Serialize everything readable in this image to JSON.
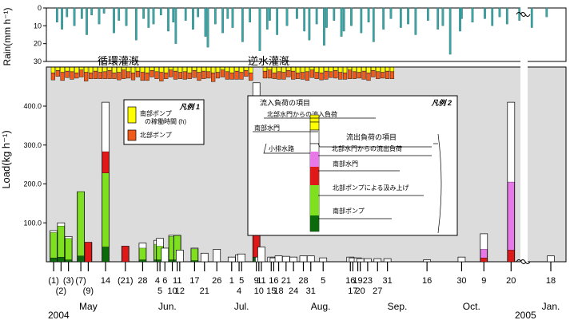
{
  "chart_data": [
    {
      "type": "bar",
      "title": "",
      "ylabel": "Rain(mm h⁻¹)",
      "y_inverted": true,
      "ylim": [
        0,
        30
      ],
      "yticks": [
        0,
        10,
        20,
        30
      ],
      "x_domain_days": [
        0,
        305
      ],
      "series": [
        {
          "name": "",
          "color": "#3aa6a6",
          "x": [
            2,
            4,
            6,
            9,
            12,
            14,
            16,
            19,
            21,
            25,
            27,
            30,
            34,
            37,
            39,
            41,
            44,
            47,
            49,
            50,
            54,
            57,
            59,
            62,
            63,
            66,
            69,
            71,
            73,
            77,
            80,
            84,
            87,
            88,
            91,
            95,
            99,
            102,
            104,
            107,
            110,
            111,
            114,
            117,
            118,
            121,
            125,
            128,
            130,
            134,
            137,
            141,
            144,
            147,
            152,
            156,
            158,
            161,
            165,
            170,
            175,
            178,
            181,
            184,
            189,
            194,
            200,
            206
          ],
          "values": [
            8,
            12,
            5,
            10,
            6,
            15,
            4,
            9,
            3,
            14,
            7,
            10,
            18,
            6,
            11,
            9,
            4,
            13,
            8,
            20,
            7,
            12,
            5,
            16,
            22,
            9,
            14,
            6,
            11,
            19,
            8,
            24,
            12,
            7,
            15,
            10,
            6,
            13,
            18,
            9,
            21,
            11,
            7,
            16,
            13,
            10,
            14,
            8,
            19,
            12,
            6,
            11,
            9,
            15,
            7,
            12,
            10,
            26,
            13,
            8,
            6,
            10,
            5,
            9,
            7,
            11,
            5,
            6
          ]
        }
      ]
    },
    {
      "type": "bar",
      "title": "",
      "ylabel": "Load(kg h⁻¹)",
      "ylim": [
        0,
        480
      ],
      "yticks": [
        100.0,
        200.0,
        300.0,
        400.0
      ],
      "ytick_labels": [
        "100.0",
        "200.0",
        "300.0",
        "400.0"
      ],
      "period_labels": [
        "循環灌漑",
        "逆水灌漑"
      ],
      "month_labels": [
        "May",
        "Jun.",
        "Jul.",
        "Aug.",
        "Sep.",
        "Oct.",
        "Jan."
      ],
      "year_labels": [
        "2004",
        "2005"
      ],
      "pump_hours_top_scale": 30,
      "inflow_colors": {
        "north_gate": "#ffff00",
        "south_gate": "#ffff00",
        "small_drain": "#ffff00"
      },
      "outflow_colors": {
        "north_gate": "#e878e8",
        "south_gate": "#e01818",
        "north_pump_lift": "#7ee01e",
        "south_pump": "#0b6b0b"
      },
      "events": [
        {
          "label": "(1)",
          "day": 1,
          "in": 80,
          "south_pump": 10,
          "north_pump": 65,
          "south_gate": 0,
          "north_gate": 0
        },
        {
          "label": "(2)",
          "day": 4,
          "in": 100,
          "south_pump": 12,
          "north_pump": 80,
          "south_gate": 0,
          "north_gate": 0
        },
        {
          "label": "(3)",
          "day": 7,
          "in": 65,
          "south_pump": 5,
          "north_pump": 55,
          "south_gate": 0,
          "north_gate": 0
        },
        {
          "label": "(7)",
          "day": 12,
          "in": 180,
          "south_pump": 15,
          "north_pump": 165,
          "south_gate": 0,
          "north_gate": 0
        },
        {
          "label": "(9)",
          "day": 15,
          "in": 50,
          "south_pump": 0,
          "north_pump": 0,
          "south_gate": 50,
          "north_gate": 0
        },
        {
          "label": "14",
          "day": 22,
          "in": 410,
          "south_pump": 38,
          "north_pump": 190,
          "south_gate": 55,
          "north_gate": 0
        },
        {
          "label": "(21)",
          "day": 30,
          "in": 40,
          "south_pump": 0,
          "north_pump": 0,
          "south_gate": 40,
          "north_gate": 0
        },
        {
          "label": "28",
          "day": 37,
          "in": 48,
          "south_pump": 5,
          "north_pump": 30,
          "south_gate": 0,
          "north_gate": 0
        },
        {
          "label": "4",
          "day": 43,
          "in": 55,
          "south_pump": 5,
          "north_pump": 40,
          "south_gate": 0,
          "north_gate": 0
        },
        {
          "label": "5",
          "day": 44,
          "in": 60,
          "south_pump": 5,
          "north_pump": 35,
          "south_gate": 0,
          "north_gate": 0
        },
        {
          "label": "6",
          "day": 46,
          "in": 35,
          "south_pump": 0,
          "north_pump": 0,
          "south_gate": 0,
          "north_gate": 0
        },
        {
          "label": "10",
          "day": 49,
          "in": 68,
          "south_pump": 5,
          "north_pump": 60,
          "south_gate": 0,
          "north_gate": 0
        },
        {
          "label": "11",
          "day": 51,
          "in": 68,
          "south_pump": 5,
          "north_pump": 62,
          "south_gate": 0,
          "north_gate": 0
        },
        {
          "label": "12",
          "day": 52,
          "in": 30,
          "south_pump": 0,
          "north_pump": 0,
          "south_gate": 0,
          "north_gate": 0
        },
        {
          "label": "17",
          "day": 58,
          "in": 35,
          "south_pump": 3,
          "north_pump": 30,
          "south_gate": 0,
          "north_gate": 0
        },
        {
          "label": "21",
          "day": 62,
          "in": 22,
          "south_pump": 0,
          "north_pump": 0,
          "south_gate": 0,
          "north_gate": 0
        },
        {
          "label": "26",
          "day": 67,
          "in": 32,
          "south_pump": 0,
          "north_pump": 0,
          "south_gate": 0,
          "north_gate": 0
        },
        {
          "label": "1",
          "day": 73,
          "in": 12,
          "south_pump": 0,
          "north_pump": 0,
          "south_gate": 0,
          "north_gate": 0
        },
        {
          "label": "4",
          "day": 76,
          "in": 18,
          "south_pump": 0,
          "north_pump": 0,
          "south_gate": 0,
          "north_gate": 0
        },
        {
          "label": "5",
          "day": 77,
          "in": 20,
          "south_pump": 0,
          "north_pump": 0,
          "south_gate": 0,
          "north_gate": 0
        },
        {
          "label": "9",
          "day": 83,
          "in": 460,
          "south_pump": 12,
          "north_pump": 0,
          "south_gate": 160,
          "north_gate": 45
        },
        {
          "label": "10",
          "day": 84,
          "in": 12,
          "south_pump": 0,
          "north_pump": 0,
          "south_gate": 0,
          "north_gate": 0
        },
        {
          "label": "11",
          "day": 85,
          "in": 38,
          "south_pump": 0,
          "north_pump": 0,
          "south_gate": 0,
          "north_gate": 0
        },
        {
          "label": "15",
          "day": 89,
          "in": 12,
          "south_pump": 0,
          "north_pump": 0,
          "south_gate": 0,
          "north_gate": 0
        },
        {
          "label": "16",
          "day": 90,
          "in": 10,
          "south_pump": 0,
          "north_pump": 0,
          "south_gate": 0,
          "north_gate": 0
        },
        {
          "label": "18",
          "day": 92,
          "in": 15,
          "south_pump": 0,
          "north_pump": 0,
          "south_gate": 0,
          "north_gate": 0
        },
        {
          "label": "21",
          "day": 95,
          "in": 14,
          "south_pump": 0,
          "north_pump": 0,
          "south_gate": 0,
          "north_gate": 0
        },
        {
          "label": "24",
          "day": 98,
          "in": 12,
          "south_pump": 0,
          "north_pump": 0,
          "south_gate": 0,
          "north_gate": 0
        },
        {
          "label": "28",
          "day": 102,
          "in": 15,
          "south_pump": 0,
          "north_pump": 0,
          "south_gate": 0,
          "north_gate": 0
        },
        {
          "label": "31",
          "day": 105,
          "in": 15,
          "south_pump": 0,
          "north_pump": 0,
          "south_gate": 0,
          "north_gate": 0
        },
        {
          "label": "5",
          "day": 110,
          "in": 10,
          "south_pump": 0,
          "north_pump": 0,
          "south_gate": 0,
          "north_gate": 0
        },
        {
          "label": "16",
          "day": 121,
          "in": 12,
          "south_pump": 0,
          "north_pump": 0,
          "south_gate": 0,
          "north_gate": 0
        },
        {
          "label": "17",
          "day": 122,
          "in": 10,
          "south_pump": 0,
          "north_pump": 0,
          "south_gate": 0,
          "north_gate": 0
        },
        {
          "label": "19",
          "day": 124,
          "in": 10,
          "south_pump": 0,
          "north_pump": 0,
          "south_gate": 0,
          "north_gate": 0
        },
        {
          "label": "20",
          "day": 125,
          "in": 8,
          "south_pump": 0,
          "north_pump": 0,
          "south_gate": 0,
          "north_gate": 0
        },
        {
          "label": "23",
          "day": 128,
          "in": 8,
          "south_pump": 0,
          "north_pump": 0,
          "south_gate": 0,
          "north_gate": 0
        },
        {
          "label": "27",
          "day": 132,
          "in": 8,
          "south_pump": 0,
          "north_pump": 0,
          "south_gate": 0,
          "north_gate": 0
        },
        {
          "label": "31",
          "day": 136,
          "in": 8,
          "south_pump": 0,
          "north_pump": 0,
          "south_gate": 0,
          "north_gate": 0
        },
        {
          "label": "16",
          "day": 152,
          "in": 5,
          "south_pump": 0,
          "north_pump": 0,
          "south_gate": 0,
          "north_gate": 0
        },
        {
          "label": "30",
          "day": 166,
          "in": 12,
          "south_pump": 0,
          "north_pump": 0,
          "south_gate": 0,
          "north_gate": 0
        },
        {
          "label": "9",
          "day": 175,
          "in": 72,
          "south_pump": 0,
          "north_pump": 0,
          "south_gate": 10,
          "north_gate": 22
        },
        {
          "label": "20",
          "day": 186,
          "in": 410,
          "south_pump": 0,
          "north_pump": 0,
          "south_gate": 30,
          "north_gate": 175
        },
        {
          "label": "18",
          "day": 300,
          "in": 15,
          "south_pump": 0,
          "north_pump": 0,
          "south_gate": 0,
          "north_gate": 0
        }
      ],
      "pump_hours": {
        "start_day": 0,
        "end_day": 139,
        "break_after_day": 72,
        "south_pump_hours": [
          10,
          6,
          9,
          7,
          8,
          10,
          5,
          9,
          10,
          7,
          9,
          8,
          6,
          10,
          9,
          5,
          8,
          10,
          7,
          9,
          10,
          6,
          8,
          9,
          10,
          5,
          7,
          9,
          8,
          10,
          6,
          9,
          7,
          8,
          10,
          9,
          5,
          8,
          10,
          7,
          9,
          6,
          10,
          8,
          9,
          7,
          5,
          10,
          8,
          9,
          6,
          7,
          10,
          9,
          8,
          5,
          9,
          10,
          7,
          8,
          6,
          9,
          10,
          5,
          8,
          9,
          7,
          10,
          6,
          8,
          9,
          7,
          8
        ],
        "north_pump_hours": [
          12,
          10,
          14,
          11,
          13,
          9,
          12,
          15,
          10,
          13,
          11,
          12,
          14,
          10,
          13,
          15,
          11,
          12,
          10,
          14,
          13,
          11,
          12,
          15,
          10,
          12,
          14,
          11,
          13,
          10,
          12,
          14,
          13,
          11,
          15,
          10,
          12,
          13,
          11,
          14,
          12,
          10,
          13,
          15,
          11,
          12,
          14,
          10,
          13,
          12,
          11,
          14,
          10,
          12,
          15,
          13,
          11,
          12,
          14,
          10,
          13,
          12,
          11,
          15,
          12,
          10,
          14,
          13,
          11,
          12,
          10,
          13,
          12
        ]
      },
      "legend1": {
        "title": "凡例 1",
        "items": [
          "南部ポンプ",
          "の稼働時間 (h)",
          "北部ポンプ"
        ]
      },
      "legend2": {
        "title": "凡例 2",
        "inflow_heading": "流入負荷の項目",
        "inflow_items": [
          "北部水門からの流入負荷",
          "南部水門",
          "小排水路"
        ],
        "outflow_heading": "流出負荷の項目",
        "outflow_items": [
          "北部水門からの流出負荷",
          "南部水門",
          "北部ポンプによる汲み上げ",
          "南部ポンプ"
        ]
      }
    }
  ]
}
